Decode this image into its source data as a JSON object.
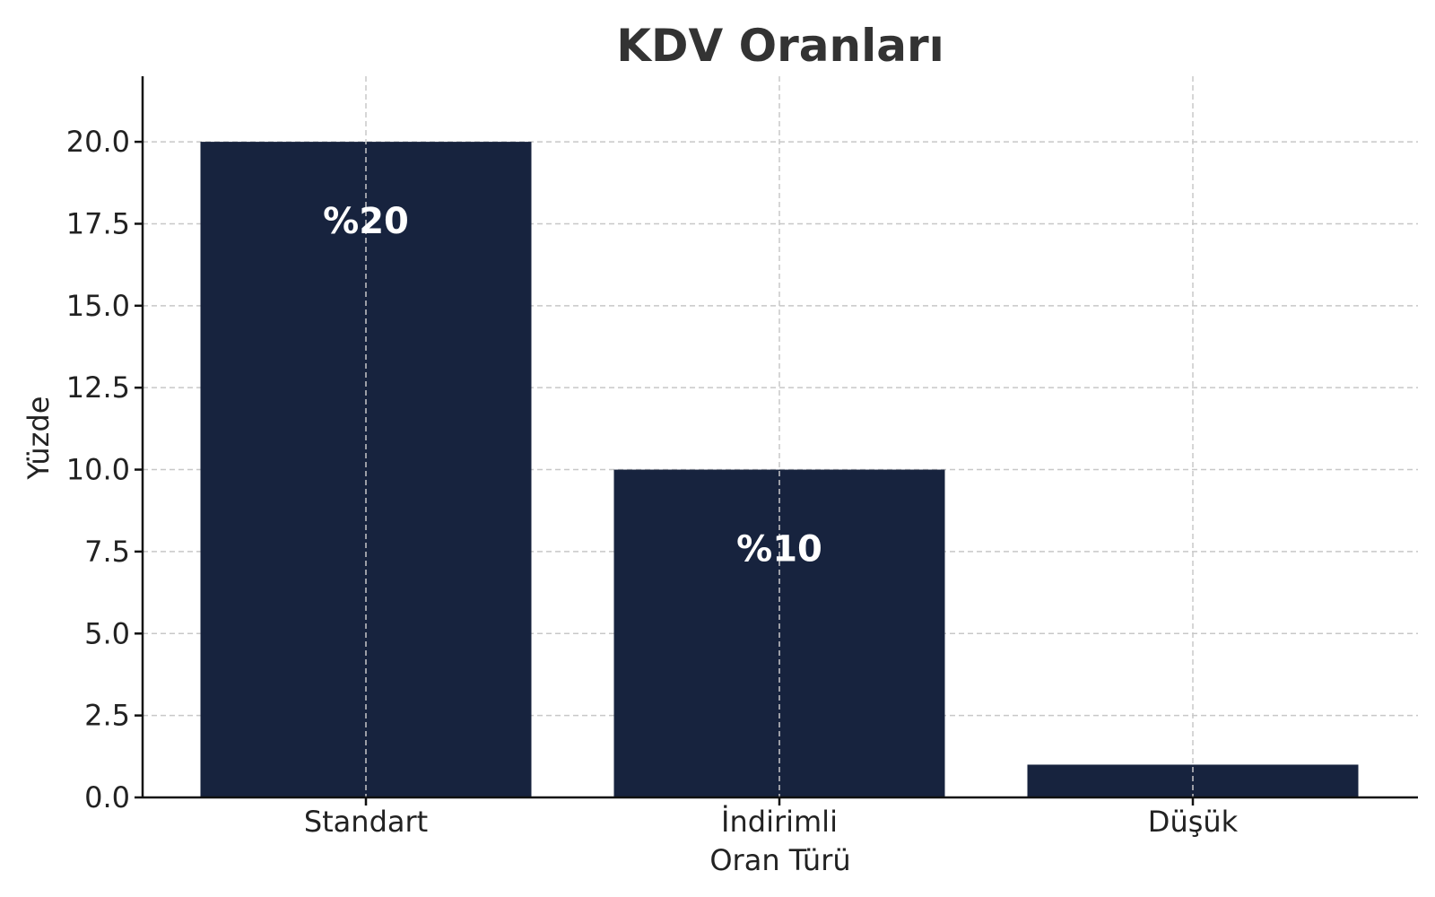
{
  "chart_data": {
    "type": "bar",
    "title": "KDV Oranları",
    "xlabel": "Oran Türü",
    "ylabel": "Yüzde",
    "categories": [
      "Standart",
      "İndirimli",
      "Düşük"
    ],
    "values": [
      20,
      10,
      1
    ],
    "data_labels": [
      "%20",
      "%10",
      ""
    ],
    "ylim": [
      0,
      22
    ],
    "yticks": [
      0,
      2.5,
      5,
      7.5,
      10,
      12.5,
      15,
      17.5,
      20
    ],
    "ytick_labels": [
      "0.0",
      "2.5",
      "5.0",
      "7.5",
      "10.0",
      "12.5",
      "15.0",
      "17.5",
      "20.0"
    ],
    "grid": true,
    "legend": "none",
    "bar_color": "#17233e"
  }
}
